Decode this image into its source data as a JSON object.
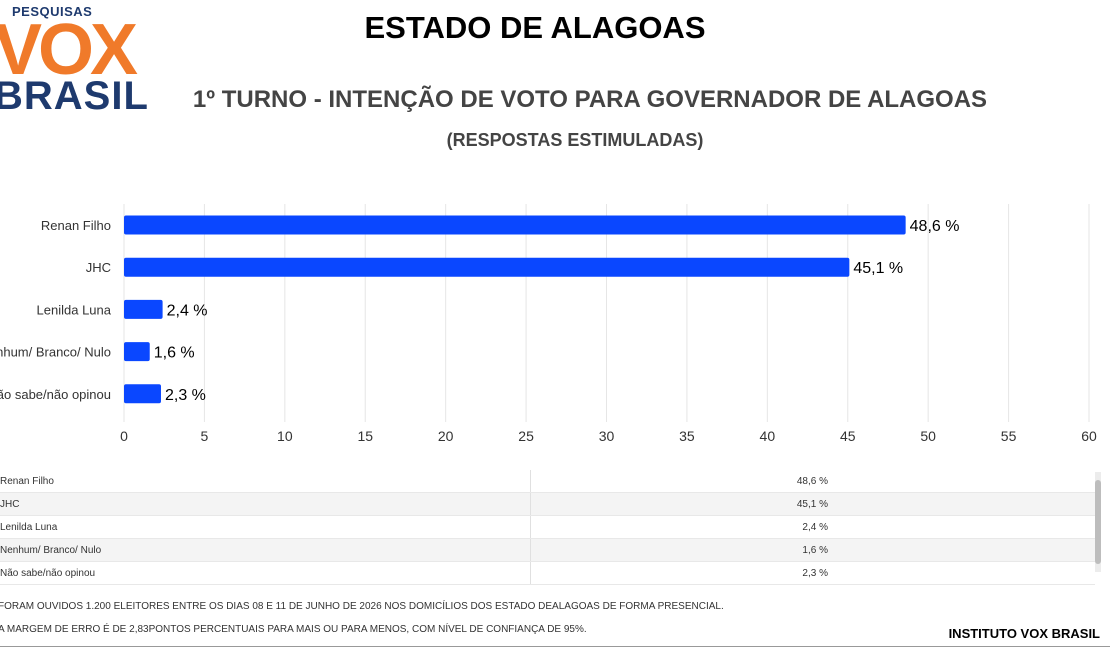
{
  "logo": {
    "small": "PESQUISAS",
    "vox": "VOX",
    "brasil": "BRASIL"
  },
  "header": {
    "title": "ESTADO DE ALAGOAS",
    "subtitle": "1º TURNO - INTENÇÃO DE VOTO PARA GOVERNADOR DE ALAGOAS",
    "subtitle2": "(RESPOSTAS ESTIMULADAS)"
  },
  "colors": {
    "bar": "#0a47ff",
    "grid": "#e6e6e6"
  },
  "chart_data": {
    "type": "bar",
    "orientation": "horizontal",
    "categories": [
      "Renan Filho",
      "JHC",
      "Lenilda Luna",
      "Nenhum/ Branco/ Nulo",
      "Não sabe/não opinou"
    ],
    "values": [
      48.6,
      45.1,
      2.4,
      1.6,
      2.3
    ],
    "data_labels": [
      "48,6 %",
      "45,1 %",
      "2,4 %",
      "1,6 %",
      "2,3 %"
    ],
    "xlim": [
      0,
      60
    ],
    "xticks": [
      0,
      5,
      10,
      15,
      20,
      25,
      30,
      35,
      40,
      45,
      50,
      55,
      60
    ],
    "grid": true,
    "legend": "none"
  },
  "table": {
    "rows": [
      {
        "label": "Renan Filho",
        "value": "48,6 %"
      },
      {
        "label": "JHC",
        "value": "45,1 %"
      },
      {
        "label": "Lenilda Luna",
        "value": "2,4 %"
      },
      {
        "label": "Nenhum/ Branco/ Nulo",
        "value": "1,6 %"
      },
      {
        "label": "Não sabe/não opinou",
        "value": "2,3 %"
      }
    ]
  },
  "notes": {
    "line1": "FORAM OUVIDOS 1.200 ELEITORES ENTRE OS DIAS 08 E 11 DE JUNHO DE 2026 NOS DOMICÍLIOS DOS ESTADO DEALAGOAS DE FORMA PRESENCIAL.",
    "line2": "A MARGEM DE ERRO É DE 2,83PONTOS PERCENTUAIS PARA MAIS OU PARA MENOS, COM NÍVEL DE CONFIANÇA DE 95%."
  },
  "footer": {
    "brand": "INSTITUTO VOX BRASIL"
  }
}
